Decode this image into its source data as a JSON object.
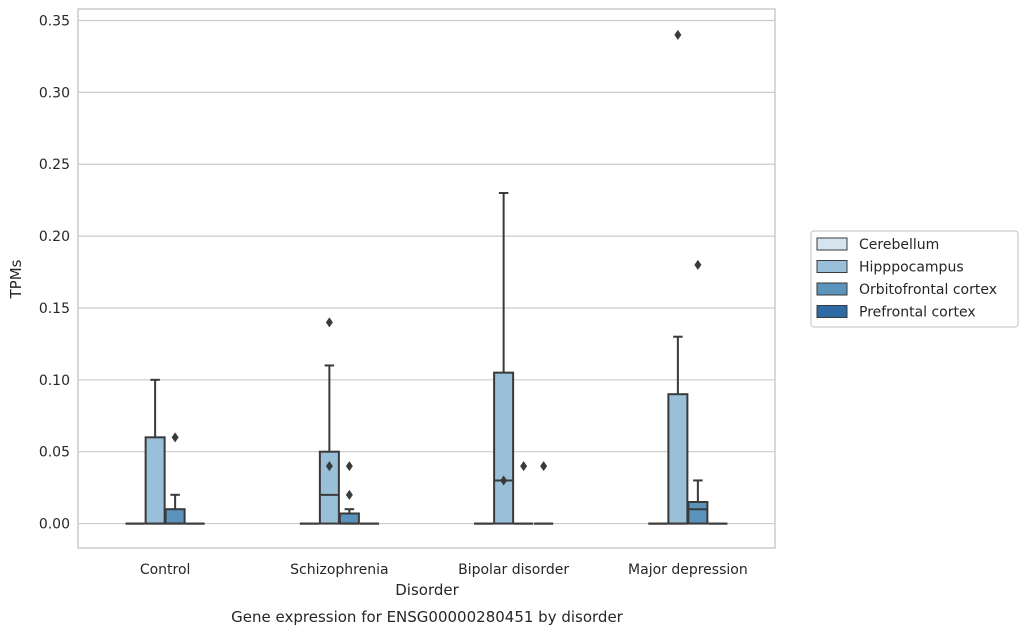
{
  "chart_data": {
    "type": "box",
    "xlabel": "Disorder",
    "ylabel": "TPMs",
    "caption": "Gene expression for ENSG00000280451 by disorder",
    "ylim": [
      -0.017,
      0.358
    ],
    "yticks": [
      0.0,
      0.05,
      0.1,
      0.15,
      0.2,
      0.25,
      0.3,
      0.35
    ],
    "ytick_labels": [
      "0.00",
      "0.05",
      "0.10",
      "0.15",
      "0.20",
      "0.25",
      "0.30",
      "0.35"
    ],
    "grid": "horizontal",
    "legend_position": "right",
    "categories": [
      "Control",
      "Schizophrenia",
      "Bipolar disorder",
      "Major depression"
    ],
    "series": [
      {
        "name": "Cerebellum",
        "color": "#d6e4f0",
        "boxes": [
          {
            "q1": 0,
            "median": 0,
            "q3": 0,
            "whisker_low": 0,
            "whisker_high": 0,
            "outliers": []
          },
          {
            "q1": 0,
            "median": 0,
            "q3": 0,
            "whisker_low": 0,
            "whisker_high": 0,
            "outliers": []
          },
          {
            "q1": 0,
            "median": 0,
            "q3": 0,
            "whisker_low": 0,
            "whisker_high": 0,
            "outliers": []
          },
          {
            "q1": 0,
            "median": 0,
            "q3": 0,
            "whisker_low": 0,
            "whisker_high": 0,
            "outliers": []
          }
        ]
      },
      {
        "name": "Hipppocampus",
        "color": "#9ac0d9",
        "boxes": [
          {
            "q1": 0,
            "median": 0,
            "q3": 0.06,
            "whisker_low": 0,
            "whisker_high": 0.1,
            "outliers": []
          },
          {
            "q1": 0,
            "median": 0.02,
            "q3": 0.05,
            "whisker_low": 0,
            "whisker_high": 0.11,
            "outliers": [
              0.04,
              0.14
            ]
          },
          {
            "q1": 0,
            "median": 0.03,
            "q3": 0.105,
            "whisker_low": 0,
            "whisker_high": 0.23,
            "outliers": [
              0.03
            ]
          },
          {
            "q1": 0,
            "median": 0,
            "q3": 0.09,
            "whisker_low": 0,
            "whisker_high": 0.13,
            "outliers": [
              0.34
            ]
          }
        ]
      },
      {
        "name": "Orbitofrontal cortex",
        "color": "#5b93bc",
        "boxes": [
          {
            "q1": 0,
            "median": 0,
            "q3": 0.01,
            "whisker_low": 0,
            "whisker_high": 0.02,
            "outliers": [
              0.06
            ]
          },
          {
            "q1": 0,
            "median": 0,
            "q3": 0.007,
            "whisker_low": 0,
            "whisker_high": 0.01,
            "outliers": [
              0.02,
              0.04
            ]
          },
          {
            "q1": 0,
            "median": 0,
            "q3": 0,
            "whisker_low": 0,
            "whisker_high": 0,
            "outliers": [
              0.04
            ]
          },
          {
            "q1": 0,
            "median": 0.01,
            "q3": 0.015,
            "whisker_low": 0,
            "whisker_high": 0.03,
            "outliers": [
              0.18
            ]
          }
        ]
      },
      {
        "name": "Prefrontal cortex",
        "color": "#2e6aa3",
        "boxes": [
          {
            "q1": 0,
            "median": 0,
            "q3": 0,
            "whisker_low": 0,
            "whisker_high": 0,
            "outliers": []
          },
          {
            "q1": 0,
            "median": 0,
            "q3": 0,
            "whisker_low": 0,
            "whisker_high": 0,
            "outliers": []
          },
          {
            "q1": 0,
            "median": 0,
            "q3": 0,
            "whisker_low": 0,
            "whisker_high": 0,
            "outliers": [
              0.04
            ]
          },
          {
            "q1": 0,
            "median": 0,
            "q3": 0,
            "whisker_low": 0,
            "whisker_high": 0,
            "outliers": []
          }
        ]
      }
    ],
    "line_color": "#3a3a3a",
    "grid_color": "#cccccc",
    "frame_color": "#cccccc"
  }
}
